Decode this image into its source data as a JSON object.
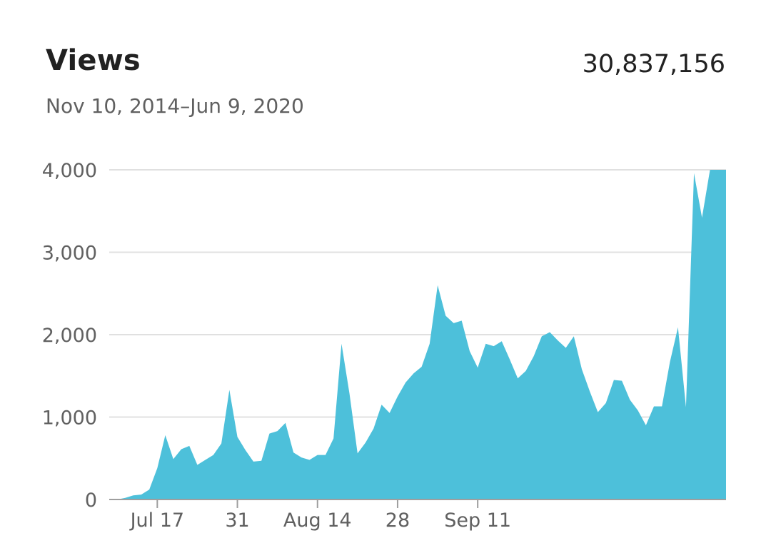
{
  "header": {
    "title": "Views",
    "total": "30,837,156",
    "date_range": "Nov 10, 2014–Jun 9, 2020"
  },
  "colors": {
    "area": "#4dc0da",
    "grid": "#e0e0e0",
    "axis": "#9e9e9e"
  },
  "chart_data": {
    "type": "area",
    "title": "Views",
    "xlabel": "",
    "ylabel": "",
    "ylim": [
      0,
      4000
    ],
    "y_ticks": [
      0,
      1000,
      2000,
      3000,
      4000
    ],
    "y_tick_labels": [
      "0",
      "1,000",
      "2,000",
      "3,000",
      "4,000"
    ],
    "x_tick_labels": [
      {
        "label": "Jul 17",
        "index": 6
      },
      {
        "label": "31",
        "index": 16
      },
      {
        "label": "Aug 14",
        "index": 26
      },
      {
        "label": "28",
        "index": 36
      },
      {
        "label": "Sep 11",
        "index": 46
      }
    ],
    "clipped_at_top": true,
    "grid": true,
    "values": [
      0,
      0,
      20,
      50,
      60,
      120,
      380,
      780,
      490,
      610,
      650,
      420,
      480,
      540,
      680,
      1330,
      760,
      600,
      460,
      470,
      800,
      830,
      930,
      570,
      510,
      480,
      540,
      540,
      740,
      1890,
      1280,
      560,
      690,
      860,
      1150,
      1050,
      1250,
      1420,
      1530,
      1610,
      1890,
      2600,
      2230,
      2140,
      2170,
      1800,
      1600,
      1890,
      1860,
      1920,
      1700,
      1470,
      1560,
      1740,
      1980,
      2030,
      1930,
      1840,
      1980,
      1580,
      1310,
      1060,
      1170,
      1450,
      1440,
      1210,
      1080,
      900,
      1130,
      1130,
      1670,
      2090,
      1120,
      3960,
      3420,
      4000,
      4000,
      4000
    ]
  }
}
